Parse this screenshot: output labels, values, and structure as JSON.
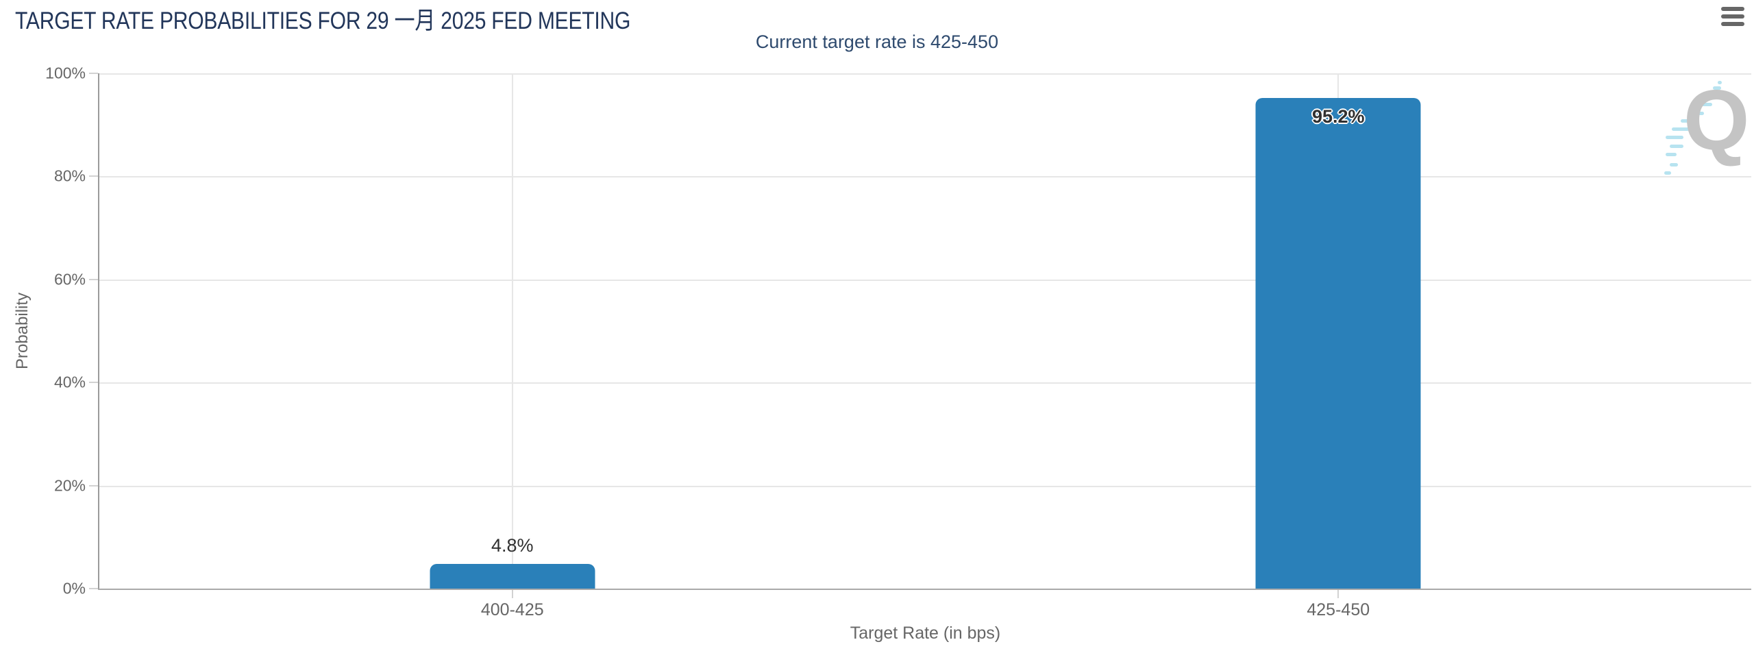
{
  "chart_data": {
    "type": "bar",
    "title": "TARGET RATE PROBABILITIES FOR 29 一月 2025 FED MEETING",
    "subtitle": "Current target rate is 425-450",
    "categories": [
      "400-425",
      "425-450"
    ],
    "values": [
      4.8,
      95.2
    ],
    "value_labels": [
      "4.8%",
      "95.2%"
    ],
    "xlabel": "Target Rate (in bps)",
    "ylabel": "Probability",
    "ylim": [
      0,
      100
    ],
    "ytick_labels": [
      "100%",
      "80%",
      "60%",
      "40%",
      "20%",
      "0%"
    ],
    "grid": true,
    "legend": "none",
    "bar_color": "#2a80b9",
    "title_color": "#22365a",
    "subtitle_color": "#2e4a6e",
    "axis_text_color": "#666666",
    "gridline_color": "#e6e6e6"
  },
  "icons": {
    "context_menu": "hamburger-menu-icon",
    "watermark": "quikstrike-q-logo"
  },
  "watermark_letter": "Q"
}
